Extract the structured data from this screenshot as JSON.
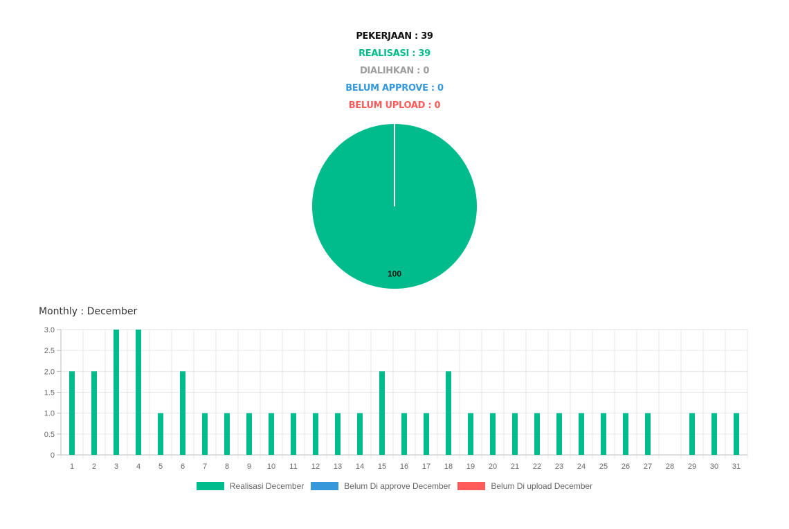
{
  "summary": {
    "pekerjaan": {
      "label": "PEKERJAAN",
      "value": "39",
      "color": "#111111"
    },
    "realisasi": {
      "label": "REALISASI",
      "value": "39",
      "color": "#00bc8c"
    },
    "dialihkan": {
      "label": "DIALIHKAN",
      "value": "0",
      "color": "#9e9e9e"
    },
    "belum_approve": {
      "label": "BELUM APPROVE",
      "value": "0",
      "color": "#3498db"
    },
    "belum_upload": {
      "label": "BELUM UPLOAD",
      "value": "0",
      "color": "#ff5b5b"
    }
  },
  "monthly_title": "Monthly : December",
  "legend": [
    {
      "label": "Realisasi December",
      "color": "#00bc8c"
    },
    {
      "label": "Belum Di approve December",
      "color": "#3498db"
    },
    {
      "label": "Belum Di upload December",
      "color": "#ff5b5b"
    }
  ],
  "chart_data": [
    {
      "type": "pie",
      "slices": [
        {
          "value": 100,
          "color": "#00bc8c",
          "data_label": "100"
        }
      ]
    },
    {
      "type": "bar",
      "title": "Monthly : December",
      "categories": [
        "1",
        "2",
        "3",
        "4",
        "5",
        "6",
        "7",
        "8",
        "9",
        "10",
        "11",
        "12",
        "13",
        "14",
        "15",
        "16",
        "17",
        "18",
        "19",
        "20",
        "21",
        "22",
        "23",
        "24",
        "25",
        "26",
        "27",
        "28",
        "29",
        "30",
        "31"
      ],
      "series": [
        {
          "name": "Realisasi December",
          "color": "#00bc8c",
          "values": [
            2,
            2,
            3,
            3,
            1,
            2,
            1,
            1,
            1,
            1,
            1,
            1,
            1,
            1,
            2,
            1,
            1,
            2,
            1,
            1,
            1,
            1,
            1,
            1,
            1,
            1,
            1,
            0,
            1,
            1,
            1
          ]
        },
        {
          "name": "Belum Di approve December",
          "color": "#3498db",
          "values": [
            0,
            0,
            0,
            0,
            0,
            0,
            0,
            0,
            0,
            0,
            0,
            0,
            0,
            0,
            0,
            0,
            0,
            0,
            0,
            0,
            0,
            0,
            0,
            0,
            0,
            0,
            0,
            0,
            0,
            0,
            0
          ]
        },
        {
          "name": "Belum Di upload December",
          "color": "#ff5b5b",
          "values": [
            0,
            0,
            0,
            0,
            0,
            0,
            0,
            0,
            0,
            0,
            0,
            0,
            0,
            0,
            0,
            0,
            0,
            0,
            0,
            0,
            0,
            0,
            0,
            0,
            0,
            0,
            0,
            0,
            0,
            0,
            0
          ]
        }
      ],
      "yticks": [
        "0",
        "0.5",
        "1.0",
        "1.5",
        "2.0",
        "2.5",
        "3.0"
      ],
      "ylim": [
        0,
        3
      ],
      "grid": true,
      "legend_position": "bottom"
    }
  ]
}
